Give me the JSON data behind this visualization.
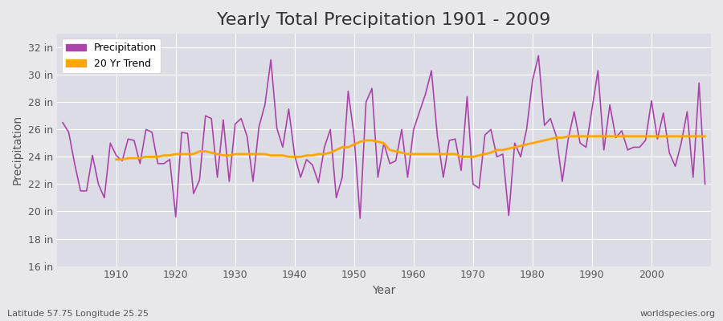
{
  "title": "Yearly Total Precipitation 1901 - 2009",
  "xlabel": "Year",
  "ylabel": "Precipitation",
  "lat_lon_label": "Latitude 57.75 Longitude 25.25",
  "watermark": "worldspecies.org",
  "years": [
    1901,
    1902,
    1903,
    1904,
    1905,
    1906,
    1907,
    1908,
    1909,
    1910,
    1911,
    1912,
    1913,
    1914,
    1915,
    1916,
    1917,
    1918,
    1919,
    1920,
    1921,
    1922,
    1923,
    1924,
    1925,
    1926,
    1927,
    1928,
    1929,
    1930,
    1931,
    1932,
    1933,
    1934,
    1935,
    1936,
    1937,
    1938,
    1939,
    1940,
    1941,
    1942,
    1943,
    1944,
    1945,
    1946,
    1947,
    1948,
    1949,
    1950,
    1951,
    1952,
    1953,
    1954,
    1955,
    1956,
    1957,
    1958,
    1959,
    1960,
    1961,
    1962,
    1963,
    1964,
    1965,
    1966,
    1967,
    1968,
    1969,
    1970,
    1971,
    1972,
    1973,
    1974,
    1975,
    1976,
    1977,
    1978,
    1979,
    1980,
    1981,
    1982,
    1983,
    1984,
    1985,
    1986,
    1987,
    1988,
    1989,
    1990,
    1991,
    1992,
    1993,
    1994,
    1995,
    1996,
    1997,
    1998,
    1999,
    2000,
    2001,
    2002,
    2003,
    2004,
    2005,
    2006,
    2007,
    2008,
    2009
  ],
  "precip_in": [
    26.5,
    25.8,
    23.5,
    21.5,
    21.5,
    24.1,
    22.0,
    21.0,
    25.0,
    24.1,
    23.7,
    25.3,
    25.2,
    23.5,
    26.0,
    25.8,
    23.5,
    23.5,
    23.8,
    19.6,
    25.8,
    25.7,
    21.3,
    22.3,
    27.0,
    26.8,
    22.5,
    26.7,
    22.2,
    26.4,
    26.8,
    25.5,
    22.2,
    26.2,
    27.8,
    31.1,
    26.1,
    24.7,
    27.5,
    24.1,
    22.5,
    23.8,
    23.4,
    22.1,
    24.7,
    26.0,
    21.0,
    22.5,
    28.8,
    25.5,
    19.5,
    28.0,
    29.0,
    22.5,
    25.0,
    23.5,
    23.7,
    26.0,
    22.5,
    26.0,
    27.3,
    28.6,
    30.3,
    25.5,
    22.5,
    25.2,
    25.3,
    23.0,
    28.4,
    22.0,
    21.7,
    25.6,
    26.0,
    24.0,
    24.2,
    19.7,
    25.0,
    24.0,
    26.0,
    29.6,
    31.4,
    26.3,
    26.8,
    25.5,
    22.2,
    25.3,
    27.3,
    25.0,
    24.7,
    27.5,
    30.3,
    24.5,
    27.8,
    25.4,
    25.9,
    24.5,
    24.7,
    24.7,
    25.2,
    28.1,
    25.3,
    27.2,
    24.3,
    23.3,
    25.0,
    27.3,
    22.5,
    29.4,
    22.0
  ],
  "trend_years": [
    1910,
    1911,
    1912,
    1913,
    1914,
    1915,
    1916,
    1917,
    1918,
    1919,
    1920,
    1921,
    1922,
    1923,
    1924,
    1925,
    1926,
    1927,
    1928,
    1929,
    1930,
    1931,
    1932,
    1933,
    1934,
    1935,
    1936,
    1937,
    1938,
    1939,
    1940,
    1941,
    1942,
    1943,
    1944,
    1945,
    1946,
    1947,
    1948,
    1949,
    1950,
    1951,
    1952,
    1953,
    1954,
    1955,
    1956,
    1957,
    1958,
    1959,
    1960,
    1961,
    1962,
    1963,
    1964,
    1965,
    1966,
    1967,
    1968,
    1969,
    1970,
    1971,
    1972,
    1973,
    1974,
    1975,
    1976,
    1977,
    1978,
    1979,
    1980,
    1981,
    1982,
    1983,
    1984,
    1985,
    1986,
    1987,
    1988,
    1989,
    1990,
    1991,
    1992,
    1993,
    1994,
    1995,
    1996,
    1997,
    1998,
    1999,
    2000,
    2001,
    2002,
    2003,
    2004,
    2005,
    2006,
    2007,
    2008,
    2009
  ],
  "trend_in": [
    23.8,
    23.8,
    23.9,
    23.9,
    23.9,
    24.0,
    24.0,
    24.0,
    24.1,
    24.1,
    24.2,
    24.2,
    24.2,
    24.2,
    24.4,
    24.4,
    24.3,
    24.2,
    24.1,
    24.1,
    24.2,
    24.2,
    24.2,
    24.2,
    24.2,
    24.2,
    24.1,
    24.1,
    24.1,
    24.0,
    24.0,
    24.0,
    24.1,
    24.1,
    24.2,
    24.2,
    24.3,
    24.5,
    24.7,
    24.7,
    24.9,
    25.1,
    25.2,
    25.2,
    25.1,
    25.0,
    24.5,
    24.4,
    24.3,
    24.2,
    24.2,
    24.2,
    24.2,
    24.2,
    24.2,
    24.2,
    24.2,
    24.2,
    24.0,
    24.0,
    24.0,
    24.1,
    24.2,
    24.3,
    24.5,
    24.5,
    24.6,
    24.7,
    24.8,
    24.9,
    25.0,
    25.1,
    25.2,
    25.3,
    25.4,
    25.4,
    25.5,
    25.5,
    25.5,
    25.5,
    25.5,
    25.5,
    25.5,
    25.5,
    25.5,
    25.5,
    25.5,
    25.5,
    25.5,
    25.5,
    25.5,
    25.5,
    25.5,
    25.5,
    25.5,
    25.5,
    25.5,
    25.5,
    25.5,
    25.5
  ],
  "precip_color": "#AA44AA",
  "trend_color": "#FFA500",
  "bg_color": "#E8E8EC",
  "plot_bg_color": "#DCDCE4",
  "grid_color": "#FFFFFF",
  "ylim": [
    16,
    33
  ],
  "yticks": [
    16,
    18,
    20,
    22,
    24,
    26,
    28,
    30,
    32
  ],
  "ytick_labels": [
    "16 in",
    "18 in",
    "20 in",
    "22 in",
    "24 in",
    "26 in",
    "28 in",
    "30 in",
    "32 in"
  ],
  "xlim": [
    1900,
    2010
  ],
  "xticks": [
    1910,
    1920,
    1930,
    1940,
    1950,
    1960,
    1970,
    1980,
    1990,
    2000
  ],
  "title_fontsize": 16,
  "axis_label_fontsize": 10,
  "tick_label_fontsize": 9,
  "legend_fontsize": 9
}
